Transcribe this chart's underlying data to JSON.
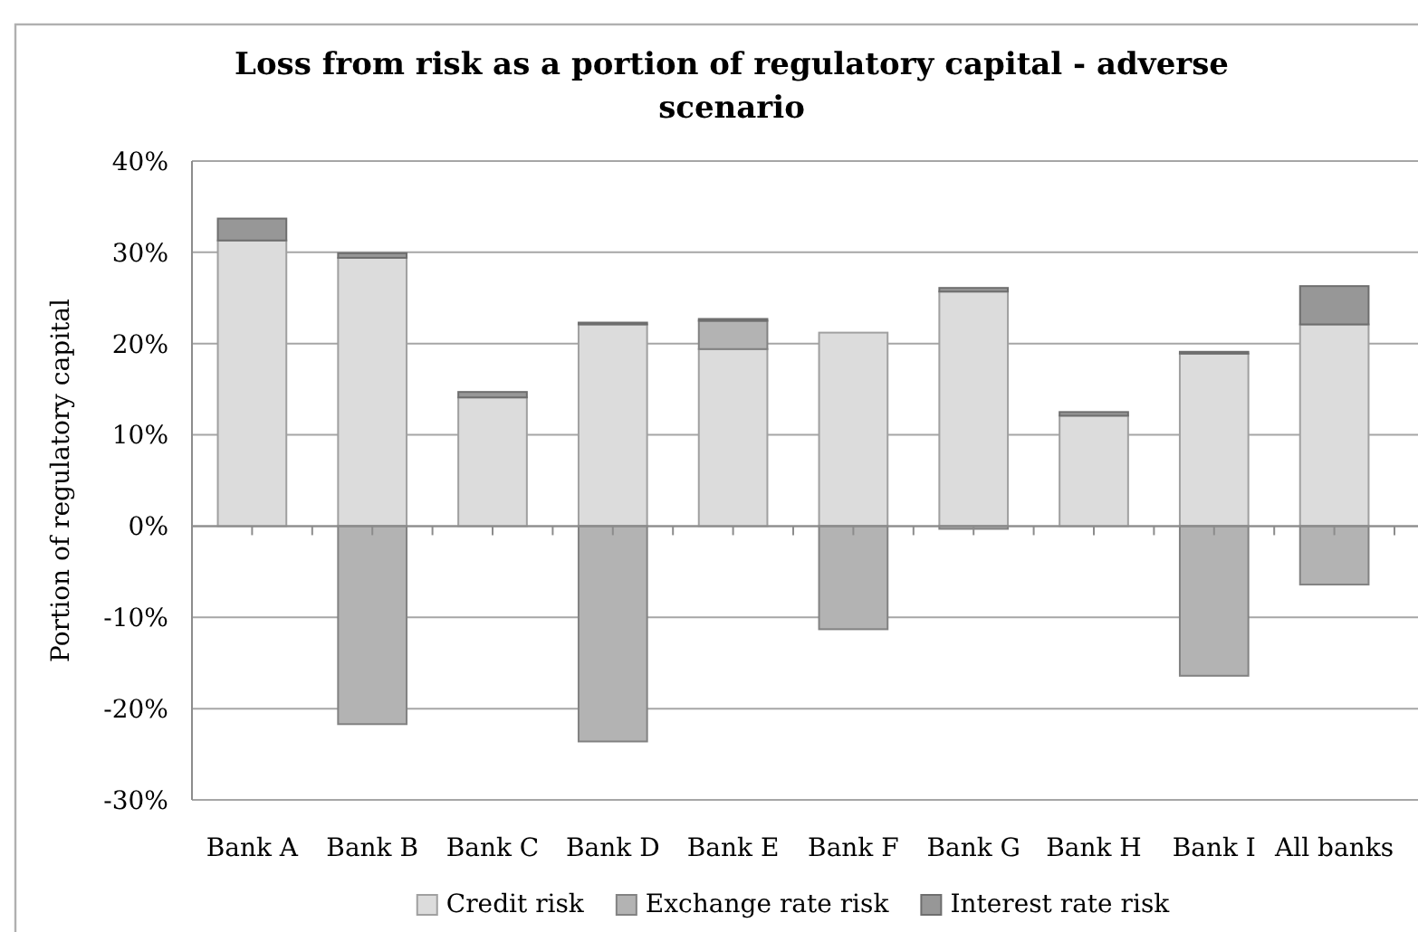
{
  "chart_data": {
    "type": "bar",
    "title": "Loss from risk as a portion of regulatory capital - adverse scenario",
    "ylabel": "Portion of regulatory capital",
    "categories": [
      "Bank A",
      "Bank B",
      "Bank C",
      "Bank D",
      "Bank E",
      "Bank F",
      "Bank G",
      "Bank H",
      "Bank I",
      "All banks"
    ],
    "stacked": true,
    "series": [
      {
        "name": "Credit risk",
        "color": "#dcdcdc",
        "values": [
          31.3,
          29.4,
          14.1,
          22.1,
          19.4,
          21.2,
          25.7,
          12.1,
          18.9,
          22.1
        ]
      },
      {
        "name": "Exchange rate risk",
        "color": "#b3b3b3",
        "values": [
          null,
          -21.7,
          null,
          -23.6,
          3.1,
          -11.3,
          -0.3,
          null,
          -16.4,
          -6.4
        ]
      },
      {
        "name": "Interest rate risk",
        "color": "#979797",
        "values": [
          2.4,
          0.5,
          0.6,
          0.2,
          0.2,
          null,
          0.4,
          0.4,
          0.2,
          4.2
        ]
      }
    ],
    "ylim": [
      -30,
      40
    ],
    "yticks": [
      {
        "value": -30,
        "label": "-30%"
      },
      {
        "value": -20,
        "label": "-20%"
      },
      {
        "value": -10,
        "label": "-10%"
      },
      {
        "value": 0,
        "label": "0%"
      },
      {
        "value": 10,
        "label": "10%"
      },
      {
        "value": 20,
        "label": "20%"
      },
      {
        "value": 30,
        "label": "30%"
      },
      {
        "value": 40,
        "label": "40%"
      }
    ],
    "grid": "y",
    "legend": "bottom"
  }
}
